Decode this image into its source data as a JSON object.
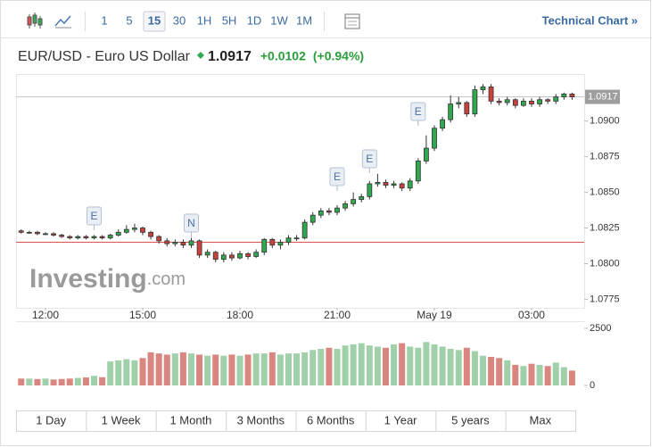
{
  "toolbar": {
    "intervals": [
      "1",
      "5",
      "15",
      "30",
      "1H",
      "5H",
      "1D",
      "1W",
      "1M"
    ],
    "selected": "15",
    "link": "Technical Chart »"
  },
  "header": {
    "name": "EUR/USD - Euro US Dollar",
    "change": "+0.0102",
    "change_pct": "(+0.94%)"
  },
  "chart_data": {
    "type": "candlestick",
    "categories": [
      null,
      null,
      null,
      "12:00",
      null,
      null,
      null,
      null,
      null,
      null,
      null,
      null,
      null,
      null,
      null,
      "15:00",
      null,
      null,
      null,
      null,
      null,
      null,
      null,
      null,
      null,
      null,
      null,
      "18:00",
      null,
      null,
      null,
      null,
      null,
      null,
      null,
      null,
      null,
      null,
      null,
      "21:00",
      null,
      null,
      null,
      null,
      null,
      null,
      null,
      null,
      null,
      null,
      null,
      "May 19",
      null,
      null,
      null,
      null,
      null,
      null,
      null,
      null,
      null,
      null,
      null,
      "03:00",
      null,
      null,
      null,
      null,
      null
    ],
    "open": [
      1.0823,
      1.0822,
      1.0822,
      1.0821,
      1.0821,
      1.082,
      1.0819,
      1.0818,
      1.0819,
      1.0818,
      1.0819,
      1.0818,
      1.082,
      1.0822,
      1.0824,
      1.0825,
      1.0822,
      1.0819,
      1.0816,
      1.0814,
      1.0815,
      1.0813,
      1.0816,
      1.0806,
      1.0808,
      1.0803,
      1.0806,
      1.0804,
      1.0807,
      1.0805,
      1.0808,
      1.0817,
      1.0813,
      1.0815,
      1.0818,
      1.0818,
      1.0829,
      1.0834,
      1.0837,
      1.0836,
      1.0839,
      1.0842,
      1.0845,
      1.0847,
      1.0856,
      1.0857,
      1.0855,
      1.0856,
      1.0853,
      1.0858,
      1.0872,
      1.0881,
      1.0895,
      1.0901,
      1.0912,
      1.0913,
      1.0905,
      1.0922,
      1.0924,
      1.0914,
      1.0913,
      1.0915,
      1.0911,
      1.0914,
      1.0912,
      1.0915,
      1.0914,
      1.0917,
      1.0919
    ],
    "high": [
      1.0824,
      1.0823,
      1.0823,
      1.0822,
      1.0822,
      1.0821,
      1.082,
      1.082,
      1.082,
      1.082,
      1.082,
      1.0821,
      1.0824,
      1.0827,
      1.0828,
      1.0826,
      1.0823,
      1.082,
      1.0818,
      1.0817,
      1.0817,
      1.0818,
      1.0817,
      1.081,
      1.0809,
      1.0808,
      1.0808,
      1.0809,
      1.0808,
      1.081,
      1.0818,
      1.0818,
      1.0817,
      1.082,
      1.082,
      1.0831,
      1.0836,
      1.0839,
      1.0839,
      1.0841,
      1.0844,
      1.085,
      1.0849,
      1.0858,
      1.0863,
      1.0859,
      1.0858,
      1.0857,
      1.086,
      1.0874,
      1.089,
      1.0897,
      1.0903,
      1.0918,
      1.0917,
      1.0914,
      1.0925,
      1.0926,
      1.0926,
      1.0916,
      1.0917,
      1.0916,
      1.0916,
      1.0916,
      1.0917,
      1.0916,
      1.0919,
      1.092,
      1.092
    ],
    "low": [
      1.0821,
      1.0821,
      1.082,
      1.082,
      1.0819,
      1.0818,
      1.0817,
      1.0817,
      1.0817,
      1.0817,
      1.0817,
      1.0817,
      1.0819,
      1.0821,
      1.0822,
      1.082,
      1.0817,
      1.0814,
      1.0812,
      1.0812,
      1.0811,
      1.0811,
      1.0804,
      1.0804,
      1.0801,
      1.0801,
      1.0802,
      1.0803,
      1.0803,
      1.0804,
      1.0806,
      1.0811,
      1.081,
      1.0813,
      1.0816,
      1.0817,
      1.0827,
      1.0832,
      1.0834,
      1.0834,
      1.0837,
      1.084,
      1.0843,
      1.0845,
      1.0854,
      1.0853,
      1.0853,
      1.0851,
      1.0851,
      1.0856,
      1.087,
      1.0879,
      1.0893,
      1.0899,
      1.0909,
      1.0903,
      1.0903,
      1.0919,
      1.0912,
      1.0911,
      1.0911,
      1.0909,
      1.091,
      1.091,
      1.091,
      1.0912,
      1.0912,
      1.0915,
      1.0915
    ],
    "close": [
      1.0822,
      1.0822,
      1.0821,
      1.0821,
      1.082,
      1.0819,
      1.0818,
      1.0819,
      1.0818,
      1.0819,
      1.0818,
      1.082,
      1.0822,
      1.0824,
      1.0825,
      1.0822,
      1.0819,
      1.0816,
      1.0814,
      1.0815,
      1.0813,
      1.0816,
      1.0806,
      1.0808,
      1.0803,
      1.0806,
      1.0804,
      1.0807,
      1.0805,
      1.0808,
      1.0817,
      1.0813,
      1.0815,
      1.0818,
      1.0818,
      1.0829,
      1.0834,
      1.0837,
      1.0836,
      1.0839,
      1.0842,
      1.0845,
      1.0847,
      1.0856,
      1.0857,
      1.0855,
      1.0856,
      1.0853,
      1.0858,
      1.0872,
      1.0881,
      1.0895,
      1.0901,
      1.0912,
      1.0913,
      1.0905,
      1.0922,
      1.0924,
      1.0914,
      1.0913,
      1.0915,
      1.0911,
      1.0914,
      1.0912,
      1.0915,
      1.0914,
      1.0917,
      1.0919,
      1.0917
    ],
    "up_color": "#2fa84f",
    "down_color": "#c8423c",
    "ylim": [
      1.0769,
      1.0933
    ],
    "yticks": [
      {
        "value": 1.09,
        "label": "1.0900"
      },
      1.0875,
      {
        "value": 1.085,
        "label": "1.0850"
      },
      1.0825,
      {
        "value": 1.08,
        "label": "1.0800"
      },
      1.0775
    ],
    "last_price": {
      "value": 1.0917,
      "label": "1.0917"
    },
    "previous_close": 1.0815,
    "events": [
      "E",
      "N",
      "E",
      "E",
      "E"
    ],
    "watermark": [
      "Investing",
      ".com"
    ],
    "volume": {
      "values": [
        300,
        300,
        280,
        300,
        260,
        280,
        300,
        330,
        350,
        420,
        360,
        1050,
        1100,
        1150,
        1100,
        1200,
        1450,
        1400,
        1350,
        1400,
        1450,
        1400,
        1350,
        1300,
        1350,
        1300,
        1350,
        1300,
        1350,
        1400,
        1400,
        1450,
        1350,
        1400,
        1400,
        1450,
        1550,
        1600,
        1650,
        1600,
        1750,
        1800,
        1850,
        1750,
        1700,
        1650,
        1800,
        1850,
        1700,
        1650,
        1900,
        1800,
        1700,
        1600,
        1550,
        1650,
        1500,
        1300,
        1250,
        1200,
        1100,
        900,
        850,
        950,
        900,
        850,
        1000,
        800,
        650
      ],
      "up_color": "#9fd0aa",
      "down_color": "#d8867f",
      "ylim": [
        0,
        2500
      ],
      "yticks": [
        2500,
        0
      ]
    }
  },
  "ranges": [
    "1 Day",
    "1 Week",
    "1 Month",
    "3 Months",
    "6 Months",
    "1 Year",
    "5 years",
    "Max"
  ]
}
